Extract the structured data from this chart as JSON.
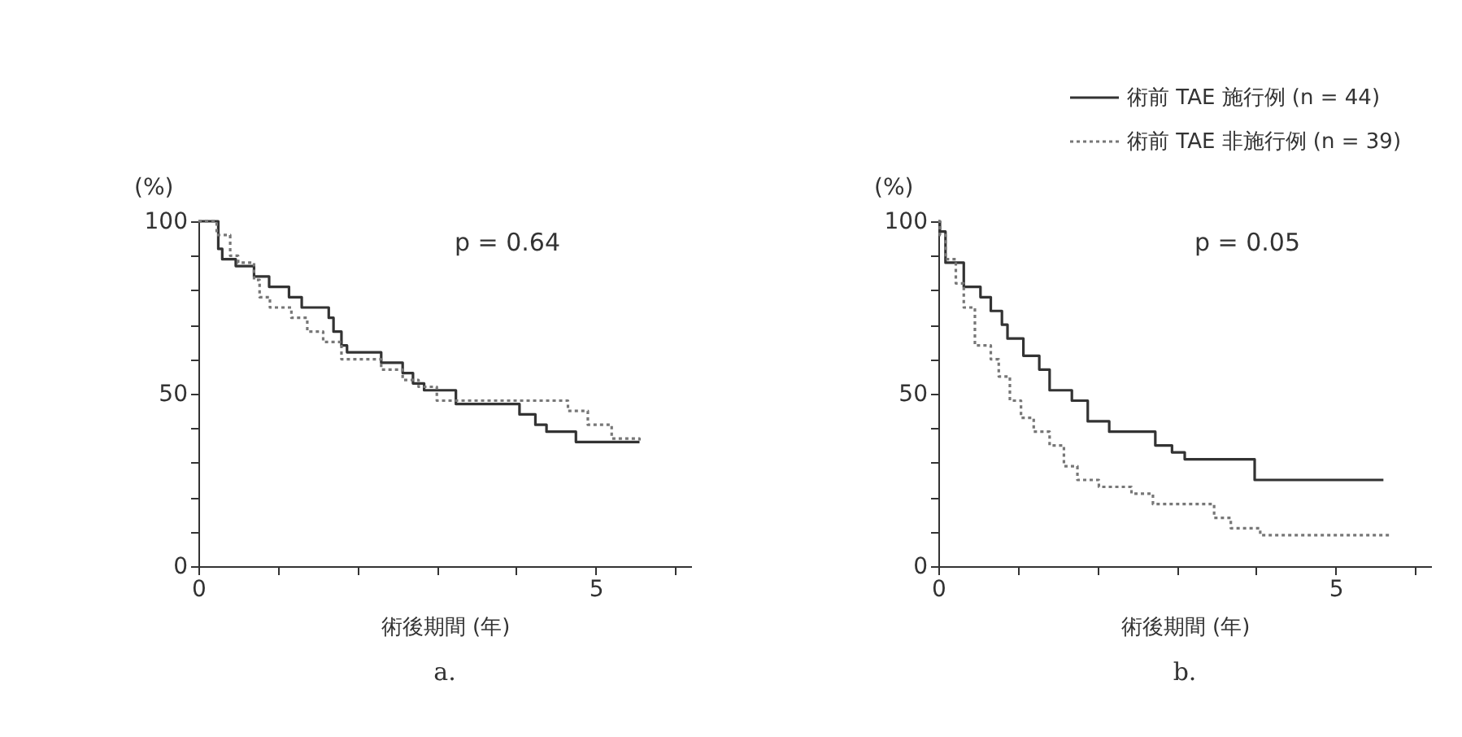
{
  "chart_data": [
    {
      "type": "step",
      "title": "a.",
      "xlabel": "術後期間 (年)",
      "ylabel": "(%)",
      "annotations": [
        "p = 0.64"
      ],
      "xlim": [
        0,
        6.2
      ],
      "ylim": [
        0,
        100
      ],
      "xticks": [
        {
          "value": 0,
          "label": "0"
        },
        {
          "value": 1,
          "label": null
        },
        {
          "value": 2,
          "label": null
        },
        {
          "value": 3,
          "label": null
        },
        {
          "value": 4,
          "label": null
        },
        5,
        {
          "value": 6,
          "label": null
        }
      ],
      "yticks": [
        0,
        {
          "value": 10,
          "label": null
        },
        {
          "value": 20,
          "label": null
        },
        {
          "value": 30,
          "label": null
        },
        {
          "value": 40,
          "label": null
        },
        50,
        {
          "value": 60,
          "label": null
        },
        {
          "value": 70,
          "label": null
        },
        {
          "value": 80,
          "label": null
        },
        {
          "value": 90,
          "label": null
        },
        100
      ],
      "grid": false,
      "legend": false,
      "series": [
        {
          "color": "#333333",
          "line_style": "solid",
          "x": [
            0,
            0.25,
            0.3,
            0.47,
            0.7,
            0.89,
            1.14,
            1.3,
            1.64,
            1.7,
            1.8,
            1.87,
            2.3,
            2.57,
            2.7,
            2.84,
            3.24,
            4.04,
            4.24,
            4.38,
            4.75,
            5.55
          ],
          "values": [
            100,
            92,
            89,
            87,
            84,
            81,
            78,
            75,
            72,
            68,
            64,
            62,
            59,
            56,
            53,
            51,
            47,
            44,
            41,
            39,
            36,
            36
          ]
        },
        {
          "color": "#777777",
          "line_style": "dotted",
          "x": [
            0,
            0.23,
            0.4,
            0.5,
            0.7,
            0.77,
            0.9,
            1.17,
            1.37,
            1.57,
            1.8,
            2.3,
            2.57,
            2.77,
            3.0,
            4.65,
            4.9,
            5.2,
            5.55
          ],
          "values": [
            100,
            96,
            90,
            88,
            83,
            78,
            75,
            72,
            68,
            65,
            60,
            57,
            54,
            52,
            48,
            45,
            41,
            37,
            36
          ]
        }
      ]
    },
    {
      "type": "step",
      "title": "b.",
      "xlabel": "術後期間 (年)",
      "ylabel": "(%)",
      "annotations": [
        "p = 0.05"
      ],
      "xlim": [
        0,
        6.2
      ],
      "ylim": [
        0,
        100
      ],
      "xticks": [
        {
          "value": 0,
          "label": "0"
        },
        {
          "value": 1,
          "label": null
        },
        {
          "value": 2,
          "label": null
        },
        {
          "value": 3,
          "label": null
        },
        {
          "value": 4,
          "label": null
        },
        5,
        {
          "value": 6,
          "label": null
        }
      ],
      "yticks": [
        0,
        {
          "value": 10,
          "label": null
        },
        {
          "value": 20,
          "label": null
        },
        {
          "value": 30,
          "label": null
        },
        {
          "value": 40,
          "label": null
        },
        50,
        {
          "value": 60,
          "label": null
        },
        {
          "value": 70,
          "label": null
        },
        {
          "value": 80,
          "label": null
        },
        {
          "value": 90,
          "label": null
        },
        100
      ],
      "grid": false,
      "legend": "top right",
      "series": [
        {
          "name": "術前 TAE 施行例 (n = 44)",
          "color": "#333333",
          "line_style": "solid",
          "x": [
            0,
            0.02,
            0.09,
            0.32,
            0.53,
            0.66,
            0.8,
            0.87,
            1.07,
            1.27,
            1.4,
            1.68,
            1.88,
            2.15,
            2.73,
            2.94,
            3.1,
            3.98,
            5.6
          ],
          "values": [
            100,
            97,
            88,
            81,
            78,
            74,
            70,
            66,
            61,
            57,
            51,
            48,
            42,
            39,
            35,
            33,
            31,
            25,
            25
          ]
        },
        {
          "name": "術前 TAE 非施行例 (n = 39)",
          "color": "#777777",
          "line_style": "dotted",
          "x": [
            0,
            0.02,
            0.09,
            0.22,
            0.32,
            0.46,
            0.66,
            0.76,
            0.9,
            1.04,
            1.2,
            1.4,
            1.58,
            1.75,
            2.02,
            2.43,
            2.7,
            3.47,
            3.68,
            4.05,
            5.7
          ],
          "values": [
            100,
            96,
            89,
            82,
            75,
            64,
            60,
            55,
            48,
            43,
            39,
            35,
            29,
            25,
            23,
            21,
            18,
            14,
            11,
            9,
            9
          ]
        }
      ]
    }
  ]
}
